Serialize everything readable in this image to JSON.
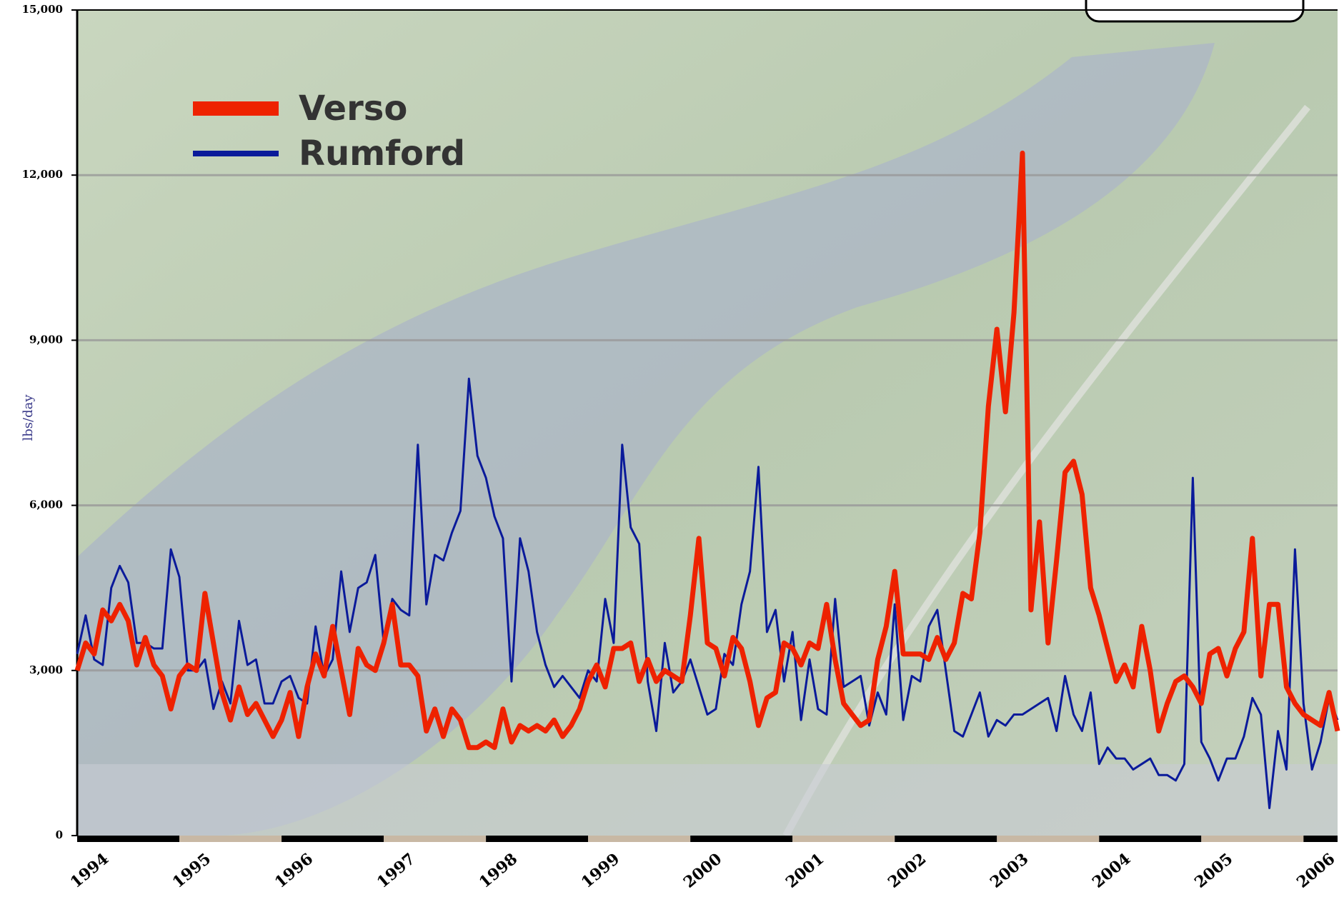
{
  "chart_data": {
    "type": "line",
    "y_label": "lbs/day",
    "categories": [
      "1994",
      null,
      null,
      null,
      null,
      null,
      null,
      null,
      null,
      null,
      null,
      null,
      "1995",
      null,
      null,
      null,
      null,
      null,
      null,
      null,
      null,
      null,
      null,
      null,
      "1996",
      null,
      null,
      null,
      null,
      null,
      null,
      null,
      null,
      null,
      null,
      null,
      "1997",
      null,
      null,
      null,
      null,
      null,
      null,
      null,
      null,
      null,
      null,
      null,
      "1998",
      null,
      null,
      null,
      null,
      null,
      null,
      null,
      null,
      null,
      null,
      null,
      "1999",
      null,
      null,
      null,
      null,
      null,
      null,
      null,
      null,
      null,
      null,
      null,
      "2000",
      null,
      null,
      null,
      null,
      null,
      null,
      null,
      null,
      null,
      null,
      null,
      "2001",
      null,
      null,
      null,
      null,
      null,
      null,
      null,
      null,
      null,
      null,
      null,
      "2002",
      null,
      null,
      null,
      null,
      null,
      null,
      null,
      null,
      null,
      null,
      null,
      "2003",
      null,
      null,
      null,
      null,
      null,
      null,
      null,
      null,
      null,
      null,
      null,
      "2004",
      null,
      null,
      null,
      null,
      null,
      null,
      null,
      null,
      null,
      null,
      null,
      "2005",
      null,
      null,
      null,
      null,
      null,
      null,
      null,
      null,
      null,
      null,
      null,
      "2006",
      null,
      null,
      null,
      null
    ],
    "series": [
      {
        "name": "Verso",
        "color": "#ee2200",
        "width": 7,
        "values": [
          3000,
          3500,
          3300,
          4100,
          3900,
          4200,
          3900,
          3100,
          3600,
          3100,
          2900,
          2300,
          2900,
          3100,
          3000,
          4400,
          3500,
          2600,
          2100,
          2700,
          2200,
          2400,
          2100,
          1800,
          2100,
          2600,
          1800,
          2700,
          3300,
          2900,
          3800,
          3000,
          2200,
          3400,
          3100,
          3000,
          3500,
          4200,
          3100,
          3100,
          2900,
          1900,
          2300,
          1800,
          2300,
          2100,
          1600,
          1600,
          1700,
          1600,
          2300,
          1700,
          2000,
          1900,
          2000,
          1900,
          2100,
          1800,
          2000,
          2300,
          2800,
          3100,
          2700,
          3400,
          3400,
          3500,
          2800,
          3200,
          2800,
          3000,
          2900,
          2800,
          4000,
          5400,
          3500,
          3400,
          2900,
          3600,
          3400,
          2800,
          2000,
          2500,
          2600,
          3500,
          3400,
          3100,
          3500,
          3400,
          4200,
          3200,
          2400,
          2200,
          2000,
          2100,
          3200,
          3800,
          4800,
          3300,
          3300,
          3300,
          3200,
          3600,
          3200,
          3500,
          4400,
          4300,
          5500,
          7800,
          9200,
          7700,
          9500,
          12400,
          4100,
          5700,
          3500,
          5000,
          6600,
          6800,
          6200,
          4500,
          4000,
          3400,
          2800,
          3100,
          2700,
          3800,
          3000,
          1900,
          2400,
          2800,
          2900,
          2700,
          2400,
          3300,
          3400,
          2900,
          3400,
          3700,
          5400,
          2900,
          4200,
          4200,
          2700,
          2400,
          2200,
          2100,
          2000,
          2600,
          1900
        ]
      },
      {
        "name": "Rumford",
        "color": "#0a1a9a",
        "width": 3,
        "values": [
          3300,
          4000,
          3200,
          3100,
          4500,
          4900,
          4600,
          3500,
          3500,
          3400,
          3400,
          5200,
          4700,
          3000,
          3000,
          3200,
          2300,
          2800,
          2400,
          3900,
          3100,
          3200,
          2400,
          2400,
          2800,
          2900,
          2500,
          2400,
          3800,
          2900,
          3200,
          4800,
          3700,
          4500,
          4600,
          5100,
          3500,
          4300,
          4100,
          4000,
          7100,
          4200,
          5100,
          5000,
          5500,
          5900,
          8300,
          6900,
          6500,
          5800,
          5400,
          2800,
          5400,
          4800,
          3700,
          3100,
          2700,
          2900,
          2700,
          2500,
          3000,
          2800,
          4300,
          3500,
          7100,
          5600,
          5300,
          2800,
          1900,
          3500,
          2600,
          2800,
          3200,
          2700,
          2200,
          2300,
          3300,
          3100,
          4200,
          4800,
          6700,
          3700,
          4100,
          2800,
          3700,
          2100,
          3200,
          2300,
          2200,
          4300,
          2700,
          2800,
          2900,
          2000,
          2600,
          2200,
          4200,
          2100,
          2900,
          2800,
          3800,
          4100,
          3000,
          1900,
          1800,
          2200,
          2600,
          1800,
          2100,
          2000,
          2200,
          2200,
          2300,
          2400,
          2500,
          1900,
          2900,
          2200,
          1900,
          2600,
          1300,
          1600,
          1400,
          1400,
          1200,
          1300,
          1400,
          1100,
          1100,
          1000,
          1300,
          6500,
          1700,
          1400,
          1000,
          1400,
          1400,
          1800,
          2500,
          2200,
          500,
          1900,
          1200,
          5200,
          2400,
          1200,
          1700,
          2500,
          2100
        ]
      }
    ],
    "ylim": [
      0,
      15000
    ],
    "yticks": [
      0,
      {
        "value": 3000,
        "label": "3,000"
      },
      {
        "value": 6000,
        "label": "6,000"
      },
      {
        "value": 9000,
        "label": "9,000"
      },
      {
        "value": 12000,
        "label": "12,000"
      },
      {
        "value": 15000,
        "label": "15,000"
      }
    ],
    "grid": true
  }
}
